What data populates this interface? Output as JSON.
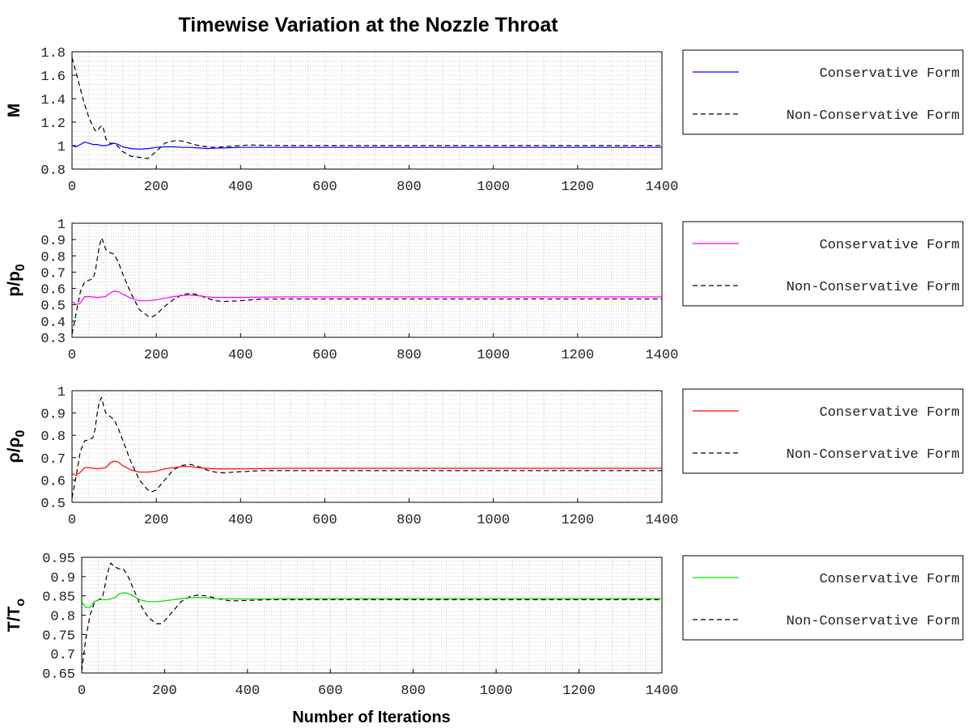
{
  "figure_title": "Timewise Variation at the Nozzle Throat",
  "xlabel": "Number of Iterations",
  "chart_data": [
    {
      "type": "line",
      "ylabel_main": "M",
      "ylabel_sub": "",
      "xlim": [
        0,
        1400
      ],
      "ylim": [
        0.8,
        1.8
      ],
      "xticks": [
        "0",
        "200",
        "400",
        "600",
        "800",
        "1000",
        "1200",
        "1400"
      ],
      "yticks": [
        "0.8",
        "1",
        "1.2",
        "1.4",
        "1.6",
        "1.8"
      ],
      "ytick_values": [
        0.8,
        1.0,
        1.2,
        1.4,
        1.6,
        1.8
      ],
      "grid": true,
      "legend_position": "right",
      "series": [
        {
          "name": "Conservative Form",
          "color": "#0000ff",
          "dash": "solid",
          "x": [
            0,
            10,
            20,
            30,
            40,
            50,
            60,
            70,
            80,
            90,
            100,
            110,
            120,
            140,
            160,
            180,
            200,
            220,
            240,
            260,
            280,
            300,
            320,
            340,
            360,
            400,
            500,
            600,
            800,
            1000,
            1200,
            1400
          ],
          "y": [
            1.0,
            0.99,
            1.01,
            1.03,
            1.02,
            1.01,
            1.01,
            1.0,
            1.0,
            1.01,
            1.02,
            1.01,
            0.99,
            0.975,
            0.97,
            0.975,
            0.985,
            0.99,
            0.99,
            0.985,
            0.985,
            0.98,
            0.975,
            0.978,
            0.98,
            0.985,
            0.985,
            0.985,
            0.985,
            0.985,
            0.985,
            0.985
          ]
        },
        {
          "name": "Non-Conservative Form",
          "color": "#000000",
          "dash": "dashed",
          "x": [
            0,
            10,
            20,
            30,
            40,
            50,
            55,
            60,
            65,
            70,
            75,
            80,
            90,
            100,
            110,
            120,
            140,
            160,
            180,
            200,
            220,
            240,
            260,
            280,
            300,
            320,
            340,
            360,
            400,
            420,
            450,
            500,
            600,
            800,
            1000,
            1200,
            1400
          ],
          "y": [
            1.75,
            1.62,
            1.48,
            1.35,
            1.24,
            1.16,
            1.13,
            1.12,
            1.15,
            1.17,
            1.14,
            1.06,
            1.02,
            1.02,
            0.99,
            0.95,
            0.91,
            0.9,
            0.89,
            0.95,
            1.02,
            1.04,
            1.04,
            1.02,
            1.0,
            0.99,
            0.985,
            0.99,
            1.0,
            1.005,
            1.003,
            1.0,
            1.0,
            1.0,
            1.0,
            1.0,
            1.0
          ]
        }
      ]
    },
    {
      "type": "line",
      "ylabel_main": "p/p",
      "ylabel_sub": "0",
      "xlim": [
        0,
        1400
      ],
      "ylim": [
        0.3,
        1.0
      ],
      "xticks": [
        "0",
        "200",
        "400",
        "600",
        "800",
        "1000",
        "1200",
        "1400"
      ],
      "yticks": [
        "0.3",
        "0.4",
        "0.5",
        "0.6",
        "0.7",
        "0.8",
        "0.9",
        "1"
      ],
      "ytick_values": [
        0.3,
        0.4,
        0.5,
        0.6,
        0.7,
        0.8,
        0.9,
        1.0
      ],
      "grid": true,
      "legend_position": "right",
      "series": [
        {
          "name": "Conservative Form",
          "color": "#ff00ff",
          "dash": "solid",
          "x": [
            0,
            10,
            20,
            30,
            40,
            60,
            80,
            90,
            100,
            110,
            120,
            140,
            160,
            180,
            200,
            220,
            240,
            260,
            280,
            300,
            320,
            340,
            400,
            500,
            600,
            800,
            1000,
            1200,
            1400
          ],
          "y": [
            0.52,
            0.5,
            0.51,
            0.55,
            0.55,
            0.545,
            0.55,
            0.57,
            0.585,
            0.58,
            0.565,
            0.54,
            0.525,
            0.525,
            0.53,
            0.54,
            0.55,
            0.555,
            0.56,
            0.555,
            0.548,
            0.545,
            0.545,
            0.548,
            0.548,
            0.548,
            0.548,
            0.548,
            0.548
          ]
        },
        {
          "name": "Non-Conservative Form",
          "color": "#000000",
          "dash": "dashed",
          "x": [
            0,
            10,
            20,
            30,
            40,
            50,
            55,
            60,
            65,
            70,
            75,
            80,
            90,
            100,
            110,
            120,
            140,
            160,
            180,
            190,
            200,
            220,
            240,
            260,
            280,
            300,
            320,
            340,
            360,
            400,
            450,
            500,
            600,
            800,
            1000,
            1200,
            1400
          ],
          "y": [
            0.32,
            0.45,
            0.58,
            0.64,
            0.65,
            0.66,
            0.7,
            0.78,
            0.86,
            0.91,
            0.88,
            0.84,
            0.82,
            0.81,
            0.76,
            0.69,
            0.57,
            0.47,
            0.43,
            0.425,
            0.44,
            0.49,
            0.53,
            0.56,
            0.57,
            0.56,
            0.54,
            0.525,
            0.52,
            0.525,
            0.535,
            0.535,
            0.535,
            0.535,
            0.535,
            0.535,
            0.535
          ]
        }
      ]
    },
    {
      "type": "line",
      "ylabel_main": "ρ/ρ",
      "ylabel_sub": "0",
      "xlim": [
        0,
        1400
      ],
      "ylim": [
        0.5,
        1.0
      ],
      "xticks": [
        "0",
        "200",
        "400",
        "600",
        "800",
        "1000",
        "1200",
        "1400"
      ],
      "yticks": [
        "0.5",
        "0.6",
        "0.7",
        "0.8",
        "0.9",
        "1"
      ],
      "ytick_values": [
        0.5,
        0.6,
        0.7,
        0.8,
        0.9,
        1.0
      ],
      "grid": true,
      "legend_position": "right",
      "series": [
        {
          "name": "Conservative Form",
          "color": "#ff0000",
          "dash": "solid",
          "x": [
            0,
            10,
            20,
            30,
            40,
            60,
            80,
            90,
            100,
            110,
            120,
            140,
            160,
            180,
            200,
            220,
            240,
            260,
            280,
            300,
            320,
            340,
            400,
            500,
            600,
            800,
            1000,
            1200,
            1400
          ],
          "y": [
            0.63,
            0.62,
            0.635,
            0.655,
            0.655,
            0.65,
            0.655,
            0.675,
            0.685,
            0.68,
            0.665,
            0.645,
            0.635,
            0.635,
            0.64,
            0.65,
            0.655,
            0.66,
            0.66,
            0.655,
            0.652,
            0.65,
            0.65,
            0.652,
            0.652,
            0.652,
            0.652,
            0.652,
            0.652
          ]
        },
        {
          "name": "Non-Conservative Form",
          "color": "#000000",
          "dash": "dashed",
          "x": [
            0,
            10,
            20,
            30,
            40,
            50,
            55,
            60,
            65,
            70,
            75,
            80,
            90,
            100,
            110,
            120,
            140,
            160,
            180,
            190,
            200,
            220,
            240,
            260,
            280,
            300,
            320,
            340,
            360,
            400,
            450,
            500,
            600,
            800,
            1000,
            1200,
            1400
          ],
          "y": [
            0.52,
            0.62,
            0.73,
            0.775,
            0.78,
            0.79,
            0.83,
            0.9,
            0.95,
            0.97,
            0.93,
            0.9,
            0.885,
            0.87,
            0.83,
            0.78,
            0.68,
            0.6,
            0.555,
            0.548,
            0.555,
            0.6,
            0.645,
            0.665,
            0.67,
            0.66,
            0.645,
            0.635,
            0.632,
            0.637,
            0.642,
            0.642,
            0.642,
            0.642,
            0.642,
            0.642,
            0.642
          ]
        }
      ]
    },
    {
      "type": "line",
      "ylabel_main": "T/T",
      "ylabel_sub": "o",
      "xlim": [
        0,
        1400
      ],
      "ylim": [
        0.65,
        0.95
      ],
      "xticks": [
        "0",
        "200",
        "400",
        "600",
        "800",
        "1000",
        "1200",
        "1400"
      ],
      "yticks": [
        "0.65",
        "0.7",
        "0.75",
        "0.8",
        "0.85",
        "0.9",
        "0.95"
      ],
      "ytick_values": [
        0.65,
        0.7,
        0.75,
        0.8,
        0.85,
        0.9,
        0.95
      ],
      "grid": true,
      "legend_position": "right",
      "series": [
        {
          "name": "Conservative Form",
          "color": "#00dd00",
          "dash": "solid",
          "x": [
            0,
            10,
            20,
            30,
            40,
            60,
            80,
            90,
            100,
            110,
            120,
            140,
            160,
            180,
            200,
            220,
            240,
            260,
            280,
            300,
            320,
            400,
            500,
            600,
            800,
            1000,
            1200,
            1400
          ],
          "y": [
            0.835,
            0.82,
            0.82,
            0.835,
            0.84,
            0.84,
            0.845,
            0.855,
            0.858,
            0.857,
            0.852,
            0.84,
            0.835,
            0.835,
            0.837,
            0.84,
            0.843,
            0.845,
            0.846,
            0.845,
            0.843,
            0.842,
            0.843,
            0.843,
            0.843,
            0.843,
            0.843,
            0.843
          ]
        },
        {
          "name": "Non-Conservative Form",
          "color": "#000000",
          "dash": "dashed",
          "x": [
            0,
            10,
            20,
            30,
            40,
            50,
            55,
            60,
            65,
            70,
            75,
            80,
            90,
            100,
            110,
            120,
            140,
            160,
            180,
            190,
            200,
            220,
            240,
            260,
            280,
            300,
            320,
            340,
            360,
            400,
            450,
            500,
            600,
            800,
            1000,
            1200,
            1400
          ],
          "y": [
            0.655,
            0.74,
            0.8,
            0.83,
            0.84,
            0.845,
            0.87,
            0.9,
            0.92,
            0.935,
            0.93,
            0.925,
            0.92,
            0.92,
            0.905,
            0.88,
            0.83,
            0.795,
            0.778,
            0.778,
            0.785,
            0.81,
            0.835,
            0.848,
            0.852,
            0.85,
            0.845,
            0.84,
            0.837,
            0.838,
            0.84,
            0.84,
            0.84,
            0.84,
            0.84,
            0.84,
            0.84
          ]
        }
      ]
    }
  ]
}
